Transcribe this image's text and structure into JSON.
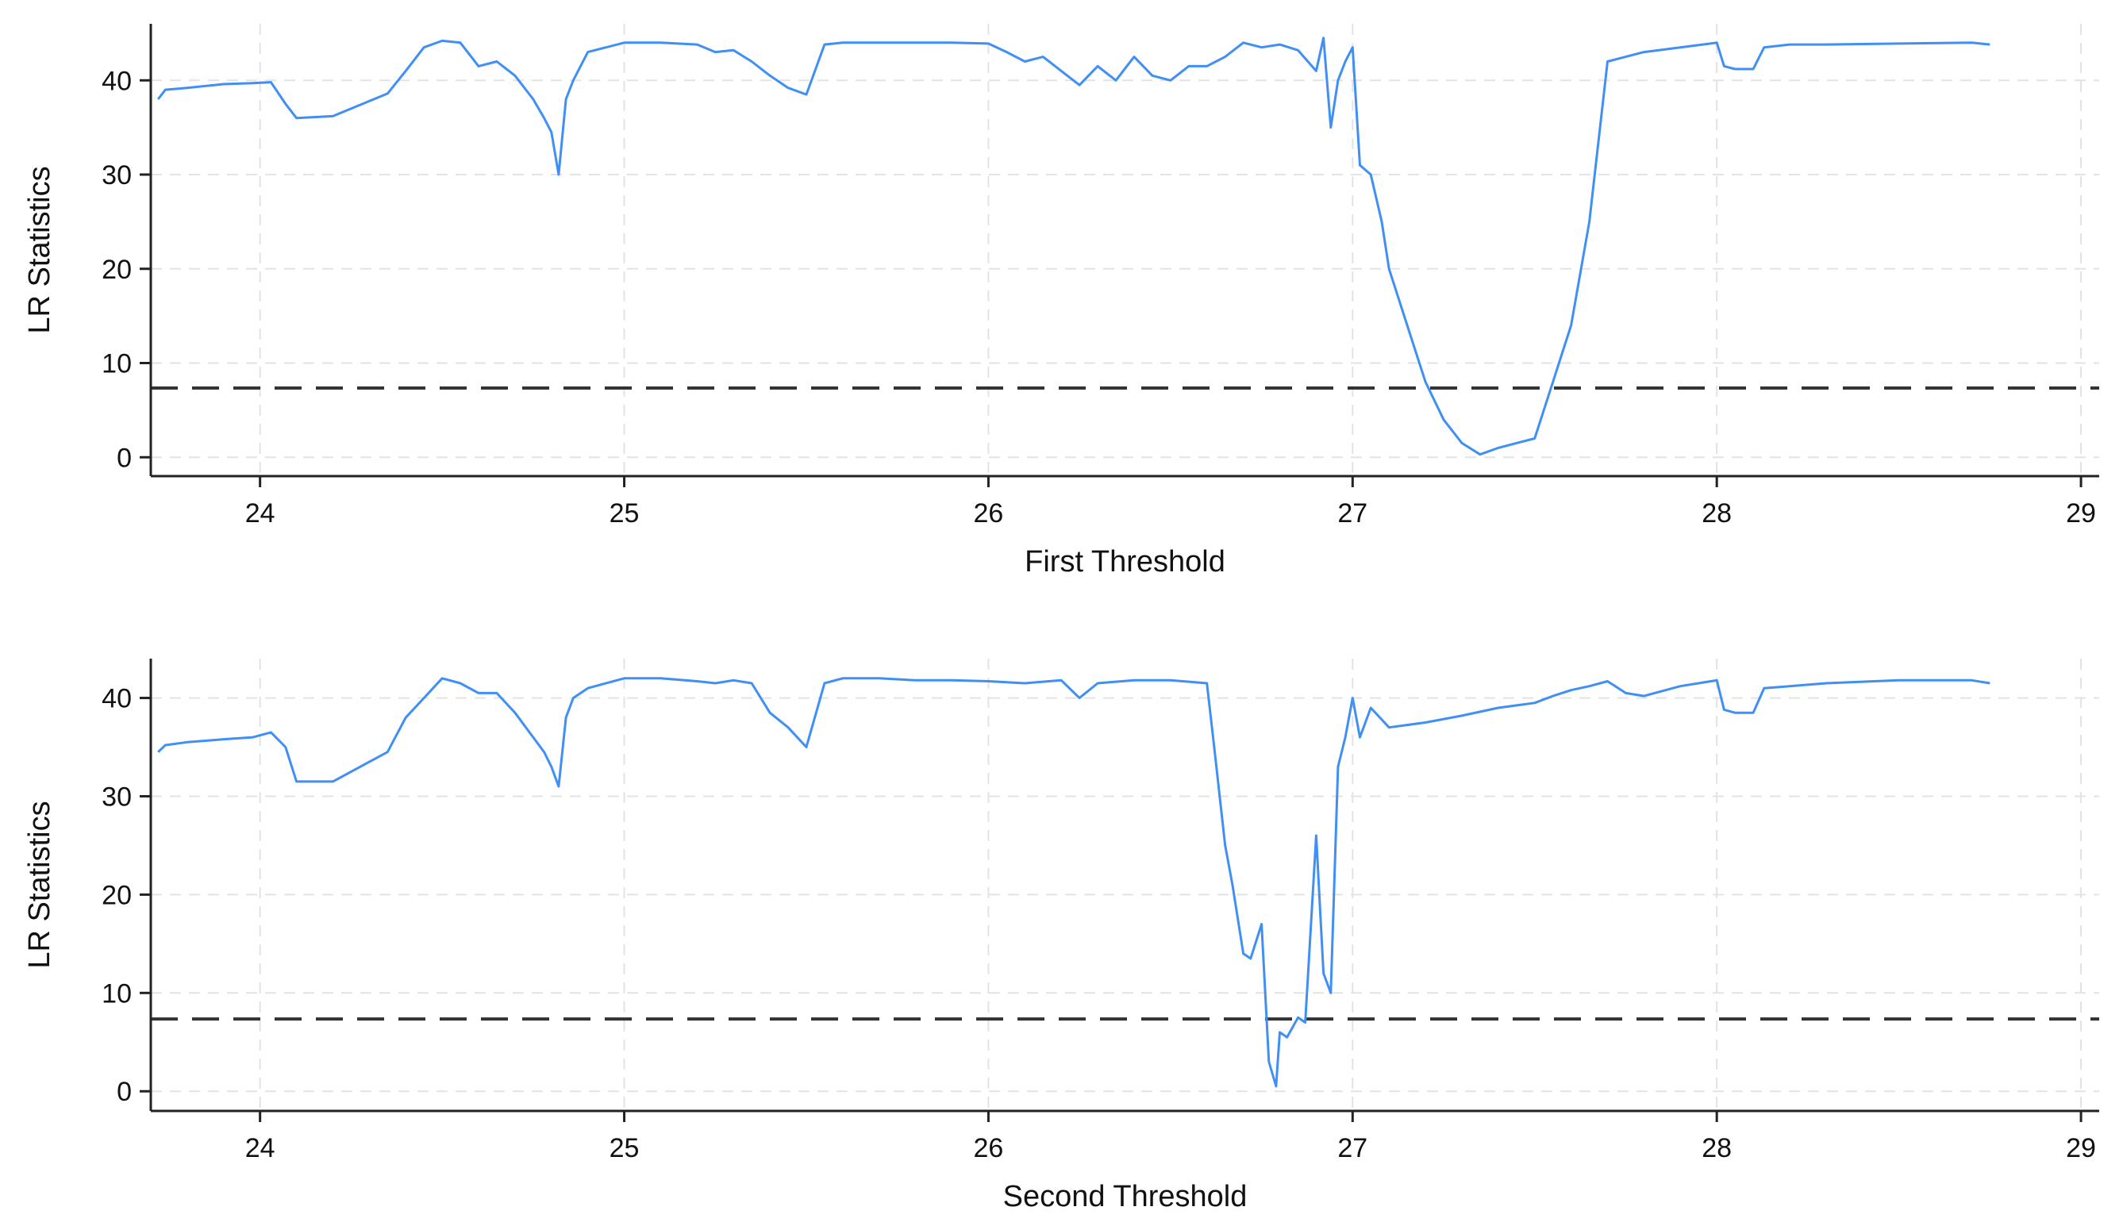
{
  "chart_data": [
    {
      "type": "line",
      "title": "",
      "xlabel": "First Threshold",
      "ylabel": "LR Statistics",
      "xlim": [
        23.7,
        29.05
      ],
      "ylim": [
        -2,
        46
      ],
      "xticks": [
        24,
        25,
        26,
        27,
        28,
        29
      ],
      "yticks": [
        0,
        10,
        20,
        30,
        40
      ],
      "grid": true,
      "critical_value": 7.35,
      "series": [
        {
          "color": "#3f8ff5",
          "x": [
            23.72,
            23.74,
            23.8,
            23.9,
            23.98,
            24.03,
            24.07,
            24.1,
            24.2,
            24.3,
            24.35,
            24.4,
            24.45,
            24.5,
            24.55,
            24.6,
            24.65,
            24.7,
            24.75,
            24.78,
            24.8,
            24.82,
            24.84,
            24.86,
            24.9,
            25.0,
            25.1,
            25.2,
            25.25,
            25.3,
            25.35,
            25.4,
            25.45,
            25.5,
            25.55,
            25.6,
            25.7,
            25.8,
            25.9,
            26.0,
            26.05,
            26.1,
            26.15,
            26.2,
            26.25,
            26.3,
            26.35,
            26.4,
            26.45,
            26.5,
            26.55,
            26.6,
            26.65,
            26.7,
            26.75,
            26.8,
            26.85,
            26.9,
            26.92,
            26.94,
            26.96,
            26.98,
            27.0,
            27.02,
            27.05,
            27.08,
            27.1,
            27.15,
            27.2,
            27.25,
            27.3,
            27.35,
            27.4,
            27.45,
            27.5,
            27.55,
            27.6,
            27.65,
            27.7,
            27.8,
            27.9,
            28.0,
            28.02,
            28.05,
            28.1,
            28.13,
            28.2,
            28.3,
            28.5,
            28.7,
            28.75
          ],
          "y": [
            38,
            39,
            39.2,
            39.6,
            39.7,
            39.8,
            37.5,
            36,
            36.2,
            37.8,
            38.6,
            41,
            43.5,
            44.2,
            44,
            41.5,
            42,
            40.5,
            38,
            36,
            34.5,
            30,
            38,
            40,
            43,
            44,
            44,
            43.8,
            43,
            43.2,
            42,
            40.5,
            39.2,
            38.5,
            43.8,
            44,
            44,
            44,
            44,
            43.9,
            43,
            42,
            42.5,
            41,
            39.5,
            41.5,
            40,
            42.5,
            40.5,
            40,
            41.5,
            41.5,
            42.5,
            44,
            43.5,
            43.8,
            43.2,
            41,
            44.5,
            35,
            40,
            42,
            43.5,
            31,
            30,
            25,
            20,
            14,
            8,
            4,
            1.5,
            0.3,
            1,
            1.5,
            2,
            8,
            14,
            25,
            42,
            43,
            43.5,
            44,
            41.5,
            41.2,
            41.2,
            43.5,
            43.8,
            43.8,
            43.9,
            44,
            43.8
          ]
        }
      ]
    },
    {
      "type": "line",
      "title": "",
      "xlabel": "Second Threshold",
      "ylabel": "LR Statistics",
      "xlim": [
        23.7,
        29.05
      ],
      "ylim": [
        -2,
        44
      ],
      "xticks": [
        24,
        25,
        26,
        27,
        28,
        29
      ],
      "yticks": [
        0,
        10,
        20,
        30,
        40
      ],
      "grid": true,
      "critical_value": 7.35,
      "series": [
        {
          "color": "#3f8ff5",
          "x": [
            23.72,
            23.74,
            23.8,
            23.9,
            23.98,
            24.03,
            24.07,
            24.1,
            24.2,
            24.3,
            24.35,
            24.4,
            24.45,
            24.5,
            24.55,
            24.6,
            24.65,
            24.7,
            24.75,
            24.78,
            24.8,
            24.82,
            24.84,
            24.86,
            24.9,
            25.0,
            25.1,
            25.2,
            25.25,
            25.3,
            25.35,
            25.4,
            25.45,
            25.5,
            25.55,
            25.6,
            25.7,
            25.8,
            25.9,
            26.0,
            26.1,
            26.2,
            26.25,
            26.3,
            26.4,
            26.5,
            26.6,
            26.62,
            26.65,
            26.67,
            26.7,
            26.72,
            26.75,
            26.77,
            26.79,
            26.8,
            26.82,
            26.85,
            26.87,
            26.9,
            26.92,
            26.94,
            26.96,
            26.98,
            27.0,
            27.02,
            27.05,
            27.1,
            27.2,
            27.3,
            27.4,
            27.5,
            27.55,
            27.6,
            27.65,
            27.7,
            27.75,
            27.8,
            27.9,
            28.0,
            28.02,
            28.05,
            28.1,
            28.13,
            28.2,
            28.3,
            28.5,
            28.7,
            28.75
          ],
          "y": [
            34.5,
            35.2,
            35.5,
            35.8,
            36,
            36.5,
            35,
            31.5,
            31.5,
            33.5,
            34.5,
            38,
            40,
            42,
            41.5,
            40.5,
            40.5,
            38.5,
            36,
            34.5,
            33,
            31,
            38,
            40,
            41,
            42,
            42,
            41.7,
            41.5,
            41.8,
            41.5,
            38.5,
            37,
            35,
            41.5,
            42,
            42,
            41.8,
            41.8,
            41.7,
            41.5,
            41.8,
            40,
            41.5,
            41.8,
            41.8,
            41.5,
            35,
            25,
            21,
            14,
            13.5,
            17,
            3,
            0.5,
            6,
            5.5,
            7.5,
            7,
            26,
            12,
            10,
            33,
            36,
            40,
            36,
            39,
            37,
            37.5,
            38.2,
            39,
            39.5,
            40.2,
            40.8,
            41.2,
            41.7,
            40.5,
            40.2,
            41.2,
            41.8,
            38.8,
            38.5,
            38.5,
            41,
            41.2,
            41.5,
            41.8,
            41.8,
            41.5
          ]
        }
      ]
    }
  ]
}
